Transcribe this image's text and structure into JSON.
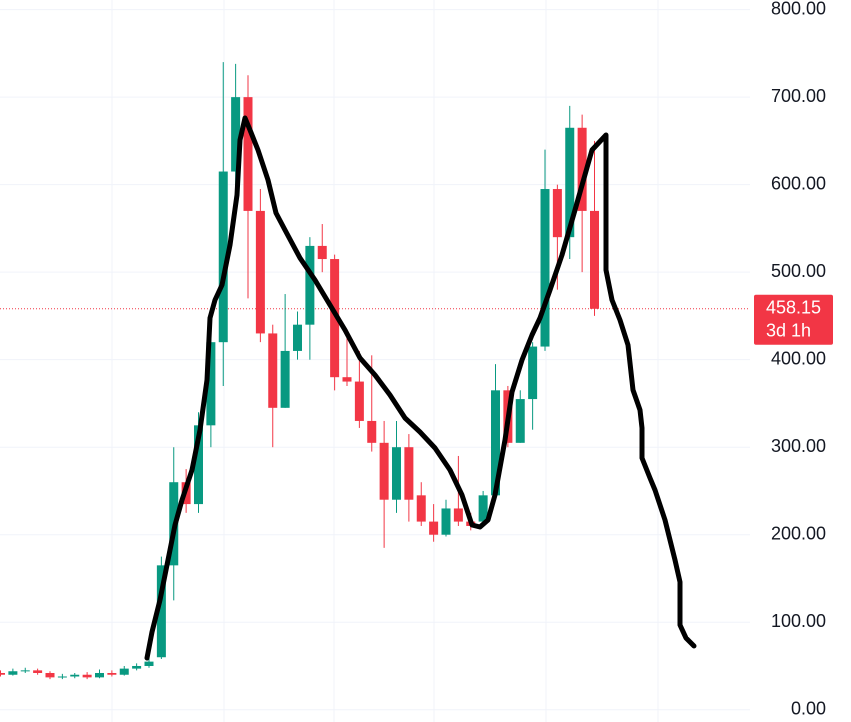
{
  "chart_data": {
    "type": "candlestick",
    "open": [
      42,
      40,
      44,
      45,
      42,
      37,
      38,
      40,
      37,
      42,
      40,
      47,
      50,
      60,
      165,
      260,
      235,
      325,
      420,
      615,
      700,
      570,
      430,
      345,
      410,
      440,
      530,
      515,
      380,
      375,
      330,
      305,
      240,
      300,
      245,
      215,
      200,
      230,
      215,
      215,
      245,
      365,
      305,
      355,
      415,
      595,
      540,
      665,
      570
    ],
    "high": [
      45,
      47,
      48,
      47,
      44,
      41,
      42,
      43,
      46,
      45,
      50,
      53,
      60,
      175,
      300,
      275,
      340,
      430,
      740,
      738,
      725,
      595,
      440,
      475,
      455,
      540,
      555,
      520,
      435,
      410,
      405,
      330,
      330,
      315,
      260,
      235,
      240,
      290,
      225,
      250,
      395,
      370,
      365,
      420,
      640,
      600,
      690,
      680,
      650
    ],
    "low": [
      38,
      39,
      42,
      40,
      35,
      35,
      36,
      35,
      36,
      38,
      39,
      45,
      48,
      58,
      125,
      225,
      225,
      300,
      370,
      580,
      470,
      420,
      300,
      345,
      400,
      400,
      500,
      365,
      370,
      322,
      295,
      185,
      225,
      215,
      210,
      192,
      198,
      210,
      205,
      210,
      245,
      300,
      305,
      320,
      410,
      480,
      515,
      500,
      450
    ],
    "close": [
      40,
      44,
      45,
      42,
      37,
      38,
      40,
      37,
      42,
      40,
      47,
      50,
      55,
      165,
      260,
      235,
      325,
      420,
      615,
      700,
      570,
      430,
      345,
      410,
      440,
      530,
      515,
      380,
      375,
      330,
      305,
      240,
      300,
      240,
      215,
      200,
      230,
      215,
      210,
      245,
      365,
      305,
      355,
      415,
      595,
      540,
      665,
      570,
      458.15
    ],
    "up_color": "#089981",
    "down_color": "#f23645",
    "ylim": [
      -14,
      811
    ],
    "yticks": [
      {
        "value": 800,
        "label": "800.00"
      },
      {
        "value": 700,
        "label": "700.00"
      },
      {
        "value": 600,
        "label": "600.00"
      },
      {
        "value": 500,
        "label": "500.00"
      },
      {
        "value": 400,
        "label": "400.00"
      },
      {
        "value": 300,
        "label": "300.00"
      },
      {
        "value": 200,
        "label": "200.00"
      },
      {
        "value": 100,
        "label": "100.00"
      },
      {
        "value": 0,
        "label": "0.00"
      }
    ],
    "grid": true,
    "last_price": 458.15,
    "countdown": "3d 1h"
  }
}
